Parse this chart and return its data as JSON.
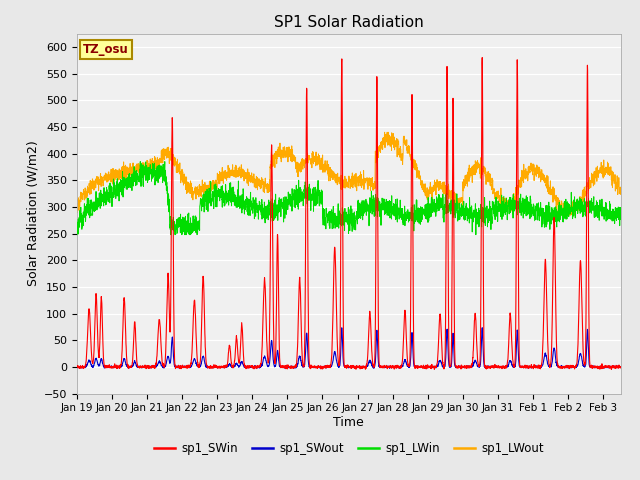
{
  "title": "SP1 Solar Radiation",
  "xlabel": "Time",
  "ylabel": "Solar Radiation (W/m2)",
  "ylim": [
    -50,
    625
  ],
  "yticks": [
    -50,
    0,
    50,
    100,
    150,
    200,
    250,
    300,
    350,
    400,
    450,
    500,
    550,
    600
  ],
  "xtick_labels": [
    "Jan 19",
    "Jan 20",
    "Jan 21",
    "Jan 22",
    "Jan 23",
    "Jan 24",
    "Jan 25",
    "Jan 26",
    "Jan 27",
    "Jan 28",
    "Jan 29",
    "Jan 30",
    "Jan 31",
    "Feb 1",
    "Feb 2",
    "Feb 3"
  ],
  "bg_color": "#e8e8e8",
  "plot_bg_color": "#f0f0f0",
  "grid_color": "#ffffff",
  "colors": {
    "sp1_SWin": "#ff0000",
    "sp1_SWout": "#0000cc",
    "sp1_LWin": "#00dd00",
    "sp1_LWout": "#ffaa00"
  },
  "legend_labels": [
    "sp1_SWin",
    "sp1_SWout",
    "sp1_LWin",
    "sp1_LWout"
  ],
  "tz_label": "TZ_osu",
  "n_points": 3000,
  "num_days": 15.5
}
